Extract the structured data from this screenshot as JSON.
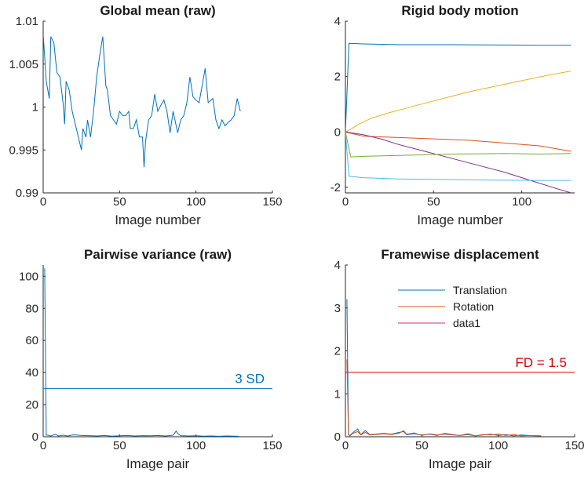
{
  "chart_data": [
    {
      "id": "global-mean",
      "type": "line",
      "title": "Global mean (raw)",
      "xlabel": "Image number",
      "ylabel": "",
      "xlim": [
        0,
        150
      ],
      "ylim": [
        0.99,
        1.01
      ],
      "xticks": [
        0,
        50,
        100,
        150
      ],
      "yticks": [
        0.99,
        0.995,
        1,
        1.005,
        1.01
      ],
      "xtick_labels": [
        "0",
        "50",
        "100",
        "150"
      ],
      "ytick_labels": [
        "0.99",
        "0.995",
        "1",
        "1.005",
        "1.01"
      ],
      "series": [
        {
          "color": "#0072BD",
          "x": [
            0,
            2,
            4,
            5,
            7,
            9,
            11,
            13,
            14,
            15,
            17,
            19,
            21,
            23,
            25,
            26,
            28,
            29,
            31,
            33,
            35,
            37,
            39,
            41,
            42,
            44,
            46,
            48,
            50,
            52,
            54,
            56,
            57,
            59,
            61,
            63,
            65,
            66,
            67,
            69,
            71,
            73,
            75,
            77,
            79,
            81,
            83,
            85,
            88,
            90,
            92,
            94,
            96,
            98,
            100,
            102,
            104,
            106,
            108,
            111,
            113,
            115,
            117,
            119,
            121,
            123,
            125,
            127,
            129
          ],
          "y": [
            1.0085,
            1.003,
            1.001,
            1.0082,
            1.0075,
            1.004,
            1.0035,
            1.0005,
            0.998,
            1.003,
            1.002,
            0.9995,
            0.998,
            0.9965,
            0.995,
            0.9975,
            0.9965,
            0.9985,
            0.9965,
            0.9995,
            1.0035,
            1.006,
            1.0082,
            1.0025,
            1.002,
            0.999,
            0.9985,
            0.998,
            0.9995,
            0.999,
            0.999,
            0.9995,
            0.9975,
            0.9975,
            0.9985,
            0.9965,
            0.9965,
            0.993,
            0.996,
            0.9985,
            0.999,
            1.0015,
            0.9995,
            1.0002,
            1.0008,
            0.9995,
            0.997,
            0.9995,
            0.997,
            0.9985,
            0.999,
            1.0005,
            1.0035,
            1.0012,
            1.0008,
            1.0005,
            1.0025,
            1.0045,
            1.0005,
            1.001,
            0.9985,
            0.9975,
            0.9985,
            0.9978,
            0.9982,
            0.9985,
            0.999,
            1.001,
            0.9995
          ]
        }
      ]
    },
    {
      "id": "rigid-body-motion",
      "type": "line",
      "title": "Rigid body motion",
      "xlabel": "Image number",
      "ylabel": "",
      "xlim": [
        0,
        130
      ],
      "ylim": [
        -2.2,
        4
      ],
      "xticks": [
        0,
        50,
        100,
        150
      ],
      "yticks": [
        -2,
        0,
        2,
        4
      ],
      "xtick_labels": [
        "0",
        "50",
        "100",
        "150"
      ],
      "ytick_labels": [
        "-2",
        "0",
        "2",
        "4"
      ],
      "series": [
        {
          "color": "#0072BD",
          "x": [
            0,
            2,
            10,
            30,
            60,
            90,
            110,
            128
          ],
          "y": [
            0,
            3.2,
            3.18,
            3.15,
            3.15,
            3.14,
            3.13,
            3.13
          ]
        },
        {
          "color": "#D95319",
          "x": [
            0,
            10,
            30,
            50,
            70,
            90,
            110,
            128
          ],
          "y": [
            0,
            -0.15,
            -0.2,
            -0.25,
            -0.3,
            -0.4,
            -0.5,
            -0.7
          ]
        },
        {
          "color": "#EDB120",
          "x": [
            0,
            3,
            8,
            15,
            25,
            40,
            55,
            70,
            85,
            100,
            115,
            128
          ],
          "y": [
            0,
            0.1,
            0.3,
            0.5,
            0.7,
            0.95,
            1.2,
            1.45,
            1.65,
            1.85,
            2.05,
            2.2
          ]
        },
        {
          "color": "#7E2F8E",
          "x": [
            0,
            10,
            20,
            30,
            45,
            60,
            75,
            90,
            105,
            120,
            128
          ],
          "y": [
            0,
            -0.1,
            -0.25,
            -0.45,
            -0.7,
            -0.95,
            -1.2,
            -1.45,
            -1.75,
            -2.05,
            -2.2
          ]
        },
        {
          "color": "#77AC30",
          "x": [
            0,
            3,
            10,
            30,
            60,
            90,
            110,
            128
          ],
          "y": [
            0,
            -0.9,
            -0.88,
            -0.85,
            -0.8,
            -0.78,
            -0.8,
            -0.78
          ]
        },
        {
          "color": "#4DBEEE",
          "x": [
            0,
            2,
            10,
            30,
            60,
            90,
            110,
            128
          ],
          "y": [
            0,
            -1.6,
            -1.65,
            -1.7,
            -1.72,
            -1.74,
            -1.75,
            -1.75
          ]
        }
      ]
    },
    {
      "id": "pairwise-variance",
      "type": "line",
      "title": "Pairwise variance (raw)",
      "xlabel": "Image pair",
      "ylabel": "",
      "xlim": [
        0,
        150
      ],
      "ylim": [
        0,
        107
      ],
      "xticks": [
        0,
        50,
        100,
        150
      ],
      "yticks": [
        0,
        20,
        40,
        60,
        80,
        100
      ],
      "xtick_labels": [
        "0",
        "50",
        "100",
        "150"
      ],
      "ytick_labels": [
        "0",
        "20",
        "40",
        "60",
        "80",
        "100"
      ],
      "series": [
        {
          "color": "#0072BD",
          "x": [
            1,
            2,
            3,
            5,
            8,
            10,
            13,
            16,
            20,
            25,
            30,
            35,
            40,
            45,
            50,
            55,
            60,
            65,
            70,
            75,
            80,
            85,
            87,
            88,
            90,
            95,
            100,
            105,
            110,
            115,
            120,
            128
          ],
          "y": [
            105,
            1,
            1,
            0.5,
            1.5,
            0.5,
            1,
            0.5,
            1.2,
            0.8,
            0.7,
            0.5,
            0.8,
            0.4,
            0.6,
            0.8,
            0.5,
            0.7,
            0.6,
            0.8,
            0.5,
            1,
            3.5,
            2,
            0.7,
            0.5,
            0.6,
            0.4,
            0.5,
            0.3,
            0.5,
            0.3
          ]
        }
      ],
      "reference_line": {
        "y": 30,
        "color": "#0072BD",
        "label": "3 SD"
      }
    },
    {
      "id": "framewise-displacement",
      "type": "line",
      "title": "Framewise displacement",
      "xlabel": "Image pair",
      "ylabel": "",
      "xlim": [
        0,
        150
      ],
      "ylim": [
        0,
        4
      ],
      "xticks": [
        0,
        50,
        100,
        150
      ],
      "yticks": [
        0,
        1,
        2,
        3,
        4
      ],
      "xtick_labels": [
        "0",
        "50",
        "100",
        "150"
      ],
      "ytick_labels": [
        "0",
        "1",
        "2",
        "3",
        "4"
      ],
      "series": [
        {
          "name": "Translation",
          "color": "#0072BD",
          "x": [
            1,
            2,
            3,
            5,
            8,
            10,
            13,
            16,
            20,
            25,
            30,
            35,
            38,
            40,
            45,
            50,
            55,
            60,
            65,
            70,
            75,
            80,
            85,
            90,
            95,
            100,
            105,
            110,
            115,
            120,
            128
          ],
          "y": [
            3.2,
            0.05,
            0.03,
            0.1,
            0.18,
            0.05,
            0.14,
            0.05,
            0.06,
            0.08,
            0.06,
            0.1,
            0.12,
            0.05,
            0.07,
            0.04,
            0.06,
            0.03,
            0.08,
            0.05,
            0.03,
            0.05,
            0.02,
            0.04,
            0.06,
            0.03,
            0.05,
            0.02,
            0.04,
            0.03,
            0.02
          ]
        },
        {
          "name": "Rotation",
          "color": "#D95319",
          "x": [
            1,
            2,
            3,
            5,
            8,
            10,
            13,
            16,
            20,
            25,
            30,
            35,
            38,
            40,
            45,
            50,
            55,
            60,
            65,
            70,
            75,
            80,
            85,
            90,
            95,
            100,
            105,
            110,
            115,
            120,
            128
          ],
          "y": [
            1.8,
            0.04,
            0.02,
            0.08,
            0.12,
            0.04,
            0.1,
            0.04,
            0.05,
            0.07,
            0.05,
            0.08,
            0.14,
            0.06,
            0.09,
            0.03,
            0.07,
            0.04,
            0.06,
            0.04,
            0.03,
            0.07,
            0.02,
            0.05,
            0.04,
            0.06,
            0.03,
            0.05,
            0.02,
            0.03,
            0.02
          ]
        }
      ],
      "reference_line": {
        "y": 1.5,
        "color": "#D40000",
        "label": "FD = 1.5"
      },
      "legend_entries": [
        {
          "label": "Translation",
          "color": "#0072BD"
        },
        {
          "label": "Rotation",
          "color": "#D95319"
        },
        {
          "label": "data1",
          "color": "#C8337A"
        }
      ],
      "legend_position": "top-center"
    }
  ]
}
